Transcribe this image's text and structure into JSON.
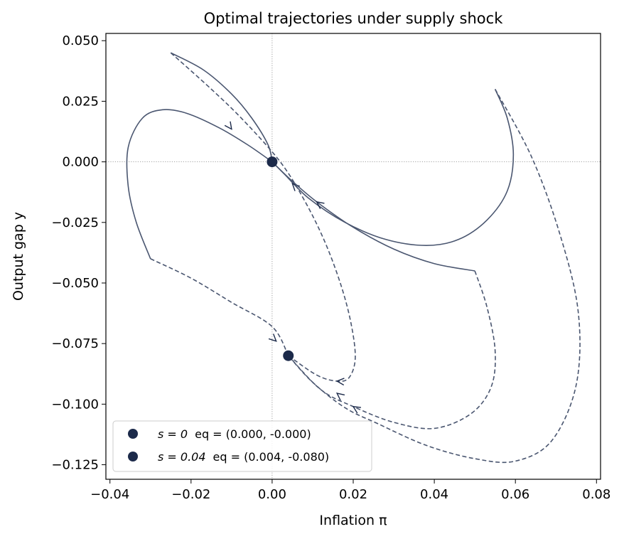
{
  "chart_data": {
    "type": "line",
    "title": "Optimal trajectories under supply shock",
    "xlabel": "Inflation π",
    "ylabel": "Output gap y",
    "xlim": [
      -0.041,
      0.081
    ],
    "ylim": [
      -0.131,
      0.053
    ],
    "xticks": [
      "−0.04",
      "−0.02",
      "0.00",
      "0.02",
      "0.04",
      "0.06",
      "0.08"
    ],
    "yticks": [
      "0.050",
      "0.025",
      "0.000",
      "−0.025",
      "−0.050",
      "−0.075",
      "−0.100",
      "−0.125"
    ],
    "grid": false,
    "reference_lines": {
      "x": 0.0,
      "y": 0.0,
      "style": "dotted"
    },
    "line_color": "#4a5670",
    "marker_color": "#1c2a4a",
    "legend_position": "lower-left",
    "legend": [
      {
        "label_prefix": "s = 0",
        "label_suffix": "eq = (0.000, -0.000)"
      },
      {
        "label_prefix": "s = 0.04",
        "label_suffix": "eq = (0.004, -0.080)"
      }
    ],
    "equilibria": [
      {
        "s": 0,
        "x": 0.0,
        "y": 0.0
      },
      {
        "s": 0.04,
        "x": 0.004,
        "y": -0.08
      }
    ],
    "series": [
      {
        "s": 0,
        "style": "solid",
        "points": [
          [
            -0.025,
            0.045
          ],
          [
            -0.017,
            0.038
          ],
          [
            -0.01,
            0.028
          ],
          [
            -0.005,
            0.018
          ],
          [
            -0.001,
            0.007
          ],
          [
            0.0,
            0.0
          ]
        ],
        "arrow_at": [
          -0.01,
          0.0135
        ]
      },
      {
        "s": 0,
        "style": "solid",
        "points": [
          [
            0.0,
            0.0
          ],
          [
            -0.006,
            0.007
          ],
          [
            -0.013,
            0.014
          ],
          [
            -0.021,
            0.02
          ],
          [
            -0.027,
            0.0215
          ],
          [
            -0.032,
            0.018
          ],
          [
            -0.0355,
            0.006
          ],
          [
            -0.0355,
            -0.01
          ],
          [
            -0.0335,
            -0.025
          ],
          [
            -0.03,
            -0.04
          ]
        ]
      },
      {
        "s": 0,
        "style": "solid",
        "points": [
          [
            0.055,
            0.03
          ],
          [
            0.058,
            0.018
          ],
          [
            0.0595,
            0.003
          ],
          [
            0.058,
            -0.012
          ],
          [
            0.053,
            -0.024
          ],
          [
            0.046,
            -0.032
          ],
          [
            0.038,
            -0.0345
          ],
          [
            0.028,
            -0.032
          ],
          [
            0.018,
            -0.025
          ],
          [
            0.009,
            -0.015
          ],
          [
            0.003,
            -0.005
          ],
          [
            0.0,
            0.0
          ]
        ],
        "arrow_at": [
          0.005,
          -0.009
        ]
      },
      {
        "s": 0,
        "style": "solid",
        "points": [
          [
            0.05,
            -0.045
          ],
          [
            0.04,
            -0.042
          ],
          [
            0.03,
            -0.036
          ],
          [
            0.02,
            -0.027
          ],
          [
            0.011,
            -0.0165
          ],
          [
            0.005,
            -0.008
          ],
          [
            0.0,
            0.0
          ]
        ],
        "arrow_at": [
          0.011,
          -0.0165
        ]
      },
      {
        "s": 0.04,
        "style": "dashed",
        "points": [
          [
            -0.025,
            0.045
          ],
          [
            -0.015,
            0.03
          ],
          [
            -0.007,
            0.017
          ],
          [
            0.002,
            0.0
          ],
          [
            0.008,
            -0.016
          ],
          [
            0.013,
            -0.033
          ],
          [
            0.017,
            -0.051
          ],
          [
            0.0195,
            -0.067
          ],
          [
            0.0205,
            -0.081
          ],
          [
            0.019,
            -0.089
          ],
          [
            0.016,
            -0.0905
          ],
          [
            0.011,
            -0.088
          ],
          [
            0.004,
            -0.08
          ]
        ],
        "arrow_at": [
          0.016,
          -0.0905
        ]
      },
      {
        "s": 0.04,
        "style": "dashed",
        "points": [
          [
            -0.03,
            -0.04
          ],
          [
            -0.02,
            -0.048
          ],
          [
            -0.01,
            -0.058
          ],
          [
            0.0,
            -0.068
          ],
          [
            0.004,
            -0.08
          ]
        ],
        "arrow_at": [
          0.001,
          -0.074
        ]
      },
      {
        "s": 0.04,
        "style": "dashed",
        "points": [
          [
            0.05,
            -0.045
          ],
          [
            0.053,
            -0.06
          ],
          [
            0.055,
            -0.078
          ],
          [
            0.054,
            -0.093
          ],
          [
            0.049,
            -0.104
          ],
          [
            0.04,
            -0.11
          ],
          [
            0.03,
            -0.1075
          ],
          [
            0.02,
            -0.101
          ],
          [
            0.012,
            -0.094
          ],
          [
            0.004,
            -0.08
          ]
        ],
        "arrow_at": [
          0.016,
          -0.0955
        ]
      },
      {
        "s": 0.04,
        "style": "dashed",
        "points": [
          [
            0.055,
            0.03
          ],
          [
            0.064,
            0.002
          ],
          [
            0.071,
            -0.03
          ],
          [
            0.0755,
            -0.062
          ],
          [
            0.075,
            -0.092
          ],
          [
            0.069,
            -0.115
          ],
          [
            0.06,
            -0.1235
          ],
          [
            0.05,
            -0.1225
          ],
          [
            0.038,
            -0.117
          ],
          [
            0.026,
            -0.108
          ],
          [
            0.018,
            -0.1015
          ],
          [
            0.01,
            -0.091
          ],
          [
            0.004,
            -0.08
          ]
        ],
        "arrow_at": [
          0.02,
          -0.101
        ]
      }
    ]
  }
}
